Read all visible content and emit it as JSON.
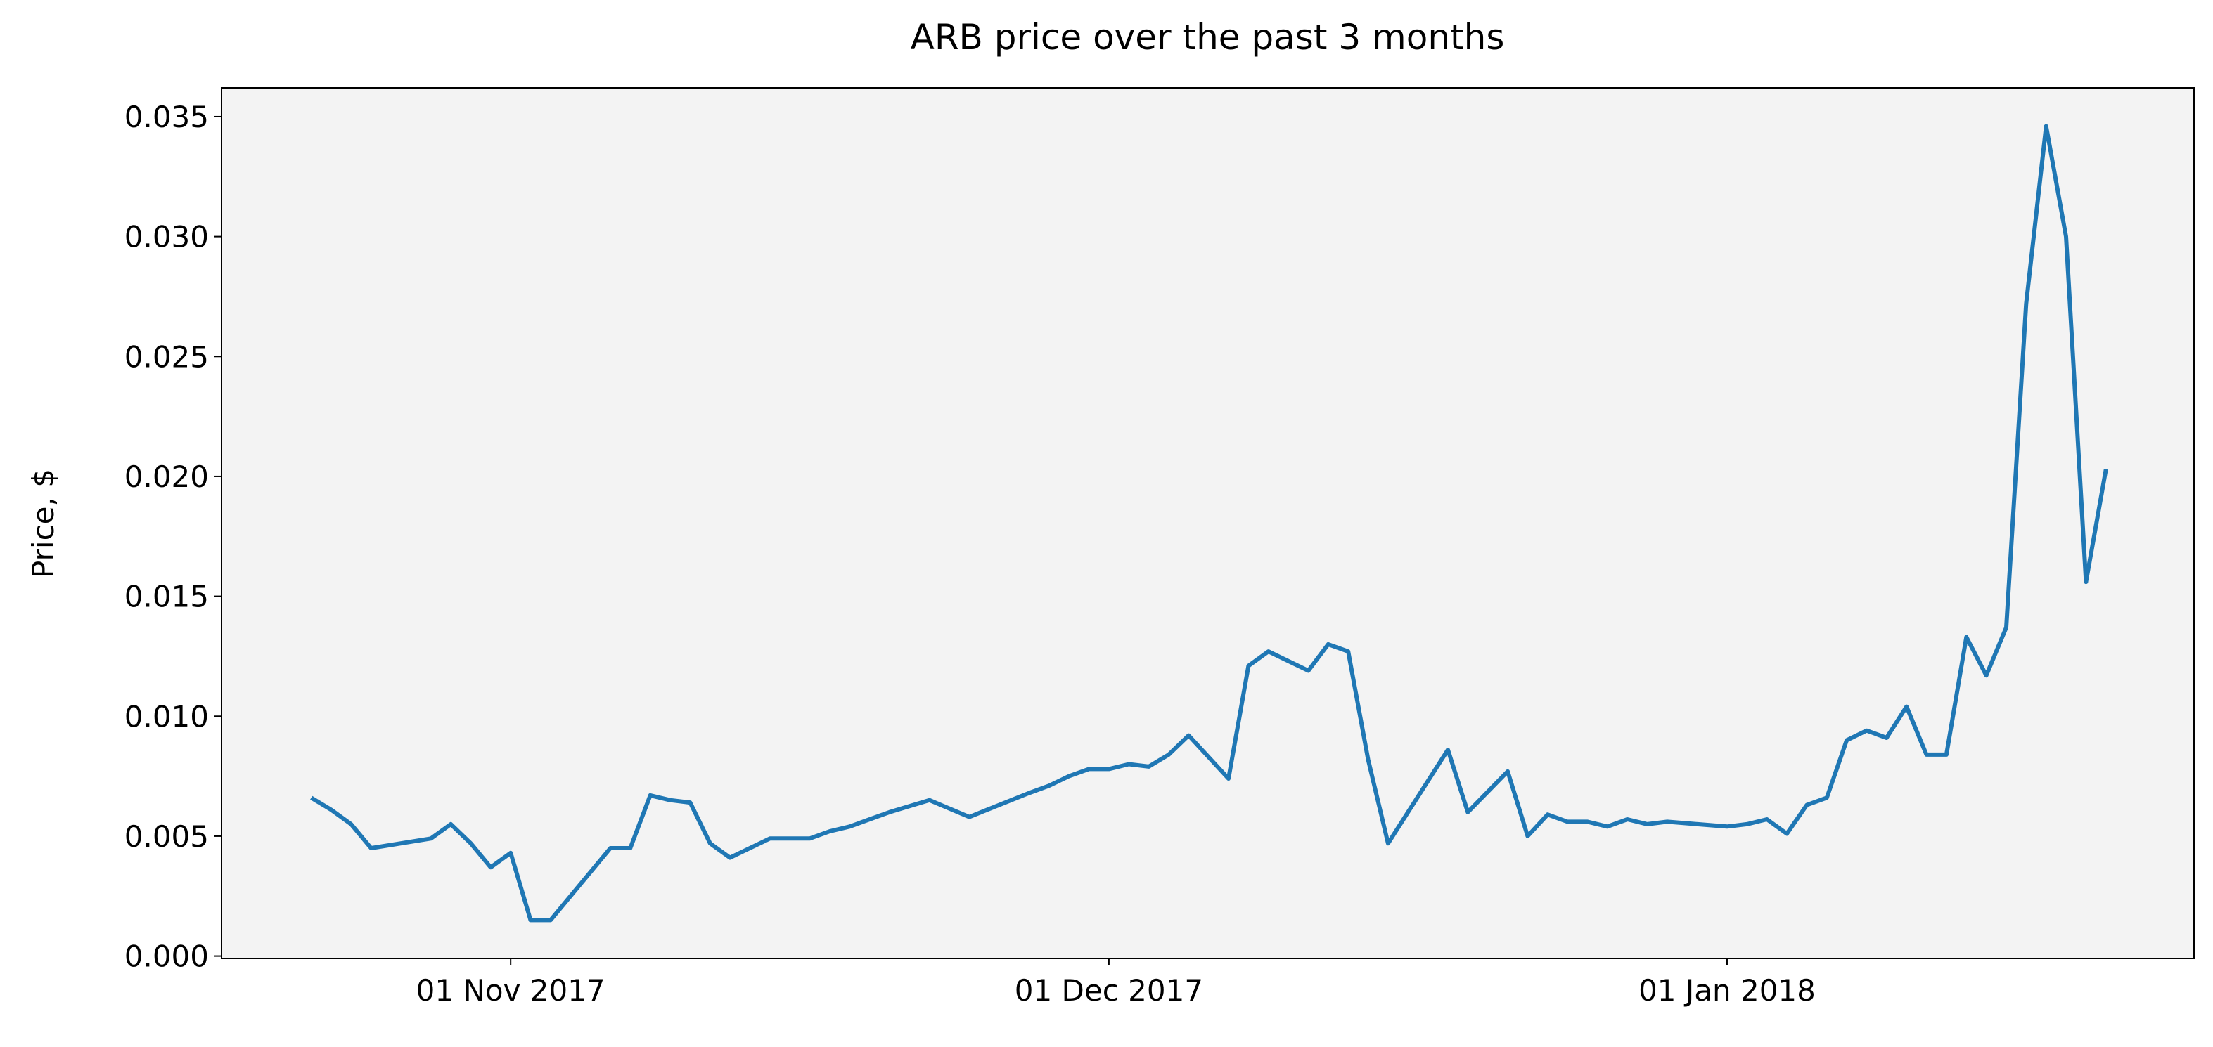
{
  "chart_data": {
    "type": "line",
    "title": "ARB price over the past 3 months",
    "y_label": "Price, $",
    "x": [
      "2017-10-22",
      "2017-10-23",
      "2017-10-24",
      "2017-10-25",
      "2017-10-28",
      "2017-10-29",
      "2017-10-30",
      "2017-10-31",
      "2017-11-01",
      "2017-11-02",
      "2017-11-03",
      "2017-11-06",
      "2017-11-07",
      "2017-11-08",
      "2017-11-09",
      "2017-11-10",
      "2017-11-11",
      "2017-11-12",
      "2017-11-14",
      "2017-11-16",
      "2017-11-17",
      "2017-11-18",
      "2017-11-19",
      "2017-11-20",
      "2017-11-22",
      "2017-11-24",
      "2017-11-27",
      "2017-11-28",
      "2017-11-29",
      "2017-11-30",
      "2017-12-01",
      "2017-12-02",
      "2017-12-03",
      "2017-12-04",
      "2017-12-05",
      "2017-12-07",
      "2017-12-08",
      "2017-12-09",
      "2017-12-11",
      "2017-12-12",
      "2017-12-13",
      "2017-12-14",
      "2017-12-15",
      "2017-12-16",
      "2017-12-18",
      "2017-12-19",
      "2017-12-21",
      "2017-12-22",
      "2017-12-23",
      "2017-12-24",
      "2017-12-25",
      "2017-12-26",
      "2017-12-27",
      "2017-12-28",
      "2017-12-29",
      "2018-01-01",
      "2018-01-02",
      "2018-01-03",
      "2018-01-04",
      "2018-01-05",
      "2018-01-06",
      "2018-01-07",
      "2018-01-08",
      "2018-01-09",
      "2018-01-10",
      "2018-01-11",
      "2018-01-12",
      "2018-01-13",
      "2018-01-14",
      "2018-01-15",
      "2018-01-16",
      "2018-01-17",
      "2018-01-18",
      "2018-01-19",
      "2018-01-20"
    ],
    "values": [
      0.0066,
      0.0061,
      0.0055,
      0.0045,
      0.0049,
      0.0055,
      0.0047,
      0.0037,
      0.0043,
      0.0015,
      0.0015,
      0.0045,
      0.0045,
      0.0067,
      0.0065,
      0.0064,
      0.0047,
      0.0041,
      0.0049,
      0.0049,
      0.0052,
      0.0054,
      0.0057,
      0.006,
      0.0065,
      0.0058,
      0.0068,
      0.0071,
      0.0075,
      0.0078,
      0.0078,
      0.008,
      0.0079,
      0.0084,
      0.0092,
      0.0074,
      0.0121,
      0.0127,
      0.0119,
      0.013,
      0.0127,
      0.0082,
      0.0047,
      0.006,
      0.0086,
      0.006,
      0.0077,
      0.005,
      0.0059,
      0.0056,
      0.0056,
      0.0054,
      0.0057,
      0.0055,
      0.0056,
      0.0054,
      0.0055,
      0.0057,
      0.0051,
      0.0063,
      0.0066,
      0.009,
      0.0094,
      0.0091,
      0.0104,
      0.0084,
      0.0084,
      0.0133,
      0.0117,
      0.0137,
      0.0272,
      0.0346,
      0.03,
      0.0156,
      0.0203
    ],
    "color": "#1f77b4",
    "background": "#f3f3f3",
    "xlim": [
      "2017-10-17T12",
      "2018-01-24T10"
    ],
    "xticks": [
      {
        "value": "2017-11-01",
        "label": "01 Nov 2017"
      },
      {
        "value": "2017-12-01",
        "label": "01 Dec 2017"
      },
      {
        "value": "2018-01-01",
        "label": "01 Jan 2018"
      }
    ],
    "ylim": [
      -0.0001,
      0.0362
    ],
    "yticks": [
      {
        "value": 0,
        "label": "0.000"
      },
      0.005,
      {
        "value": 0.01,
        "label": "0.010"
      },
      0.015,
      {
        "value": 0.02,
        "label": "0.020"
      },
      0.025,
      {
        "value": 0.03,
        "label": "0.030"
      },
      0.035
    ]
  }
}
